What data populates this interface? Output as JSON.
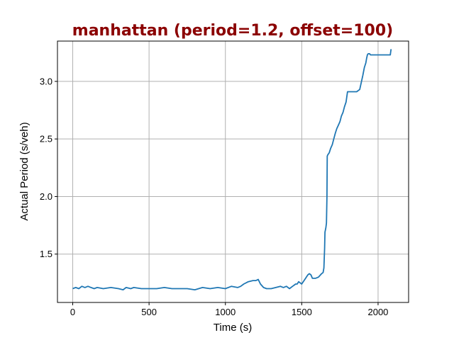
{
  "chart_data": {
    "type": "line",
    "title": "manhattan (period=1.2, offset=100)",
    "xlabel": "Time (s)",
    "ylabel": "Actual Period (s/veh)",
    "xlim": [
      -100,
      2200
    ],
    "ylim": [
      1.08,
      3.35
    ],
    "xticks": [
      0,
      500,
      1000,
      1500,
      2000
    ],
    "yticks": [
      1.5,
      2.0,
      2.5,
      3.0
    ],
    "xtick_labels": [
      "0",
      "500",
      "1000",
      "1500",
      "2000"
    ],
    "ytick_labels": [
      "1.5",
      "2.0",
      "2.5",
      "3.0"
    ],
    "grid": true,
    "series": [
      {
        "color": "#1f77b4",
        "x": [
          0,
          20,
          40,
          60,
          80,
          100,
          120,
          140,
          160,
          200,
          250,
          300,
          330,
          350,
          380,
          400,
          450,
          500,
          550,
          600,
          650,
          700,
          750,
          800,
          850,
          900,
          950,
          1000,
          1040,
          1080,
          1100,
          1120,
          1150,
          1180,
          1200,
          1215,
          1230,
          1250,
          1270,
          1300,
          1330,
          1360,
          1380,
          1400,
          1420,
          1440,
          1450,
          1460,
          1470,
          1480,
          1500,
          1520,
          1540,
          1550,
          1560,
          1570,
          1590,
          1610,
          1630,
          1640,
          1645,
          1650,
          1652,
          1658,
          1662,
          1665,
          1667,
          1670,
          1675,
          1680,
          1690,
          1700,
          1710,
          1720,
          1730,
          1740,
          1750,
          1760,
          1770,
          1780,
          1790,
          1800,
          1810,
          1820,
          1830,
          1840,
          1860,
          1880,
          1900,
          1910,
          1920,
          1925,
          1930,
          1935,
          1940,
          1945,
          1950,
          1960,
          1980,
          2000,
          2040,
          2080,
          2082,
          2085
        ],
        "y": [
          1.2,
          1.21,
          1.2,
          1.22,
          1.21,
          1.22,
          1.21,
          1.2,
          1.21,
          1.2,
          1.21,
          1.2,
          1.19,
          1.21,
          1.2,
          1.21,
          1.2,
          1.2,
          1.2,
          1.21,
          1.2,
          1.2,
          1.2,
          1.19,
          1.21,
          1.2,
          1.21,
          1.2,
          1.22,
          1.21,
          1.22,
          1.24,
          1.26,
          1.27,
          1.27,
          1.28,
          1.24,
          1.21,
          1.2,
          1.2,
          1.21,
          1.22,
          1.21,
          1.22,
          1.2,
          1.22,
          1.23,
          1.24,
          1.24,
          1.26,
          1.24,
          1.28,
          1.32,
          1.33,
          1.32,
          1.29,
          1.29,
          1.3,
          1.33,
          1.34,
          1.38,
          1.55,
          1.69,
          1.73,
          1.77,
          2.0,
          2.35,
          2.36,
          2.37,
          2.38,
          2.42,
          2.45,
          2.5,
          2.55,
          2.59,
          2.62,
          2.65,
          2.7,
          2.73,
          2.78,
          2.82,
          2.91,
          2.91,
          2.91,
          2.91,
          2.91,
          2.91,
          2.93,
          3.05,
          3.12,
          3.16,
          3.2,
          3.23,
          3.24,
          3.24,
          3.24,
          3.23,
          3.23,
          3.23,
          3.23,
          3.23,
          3.23,
          3.25,
          3.28
        ]
      }
    ]
  }
}
